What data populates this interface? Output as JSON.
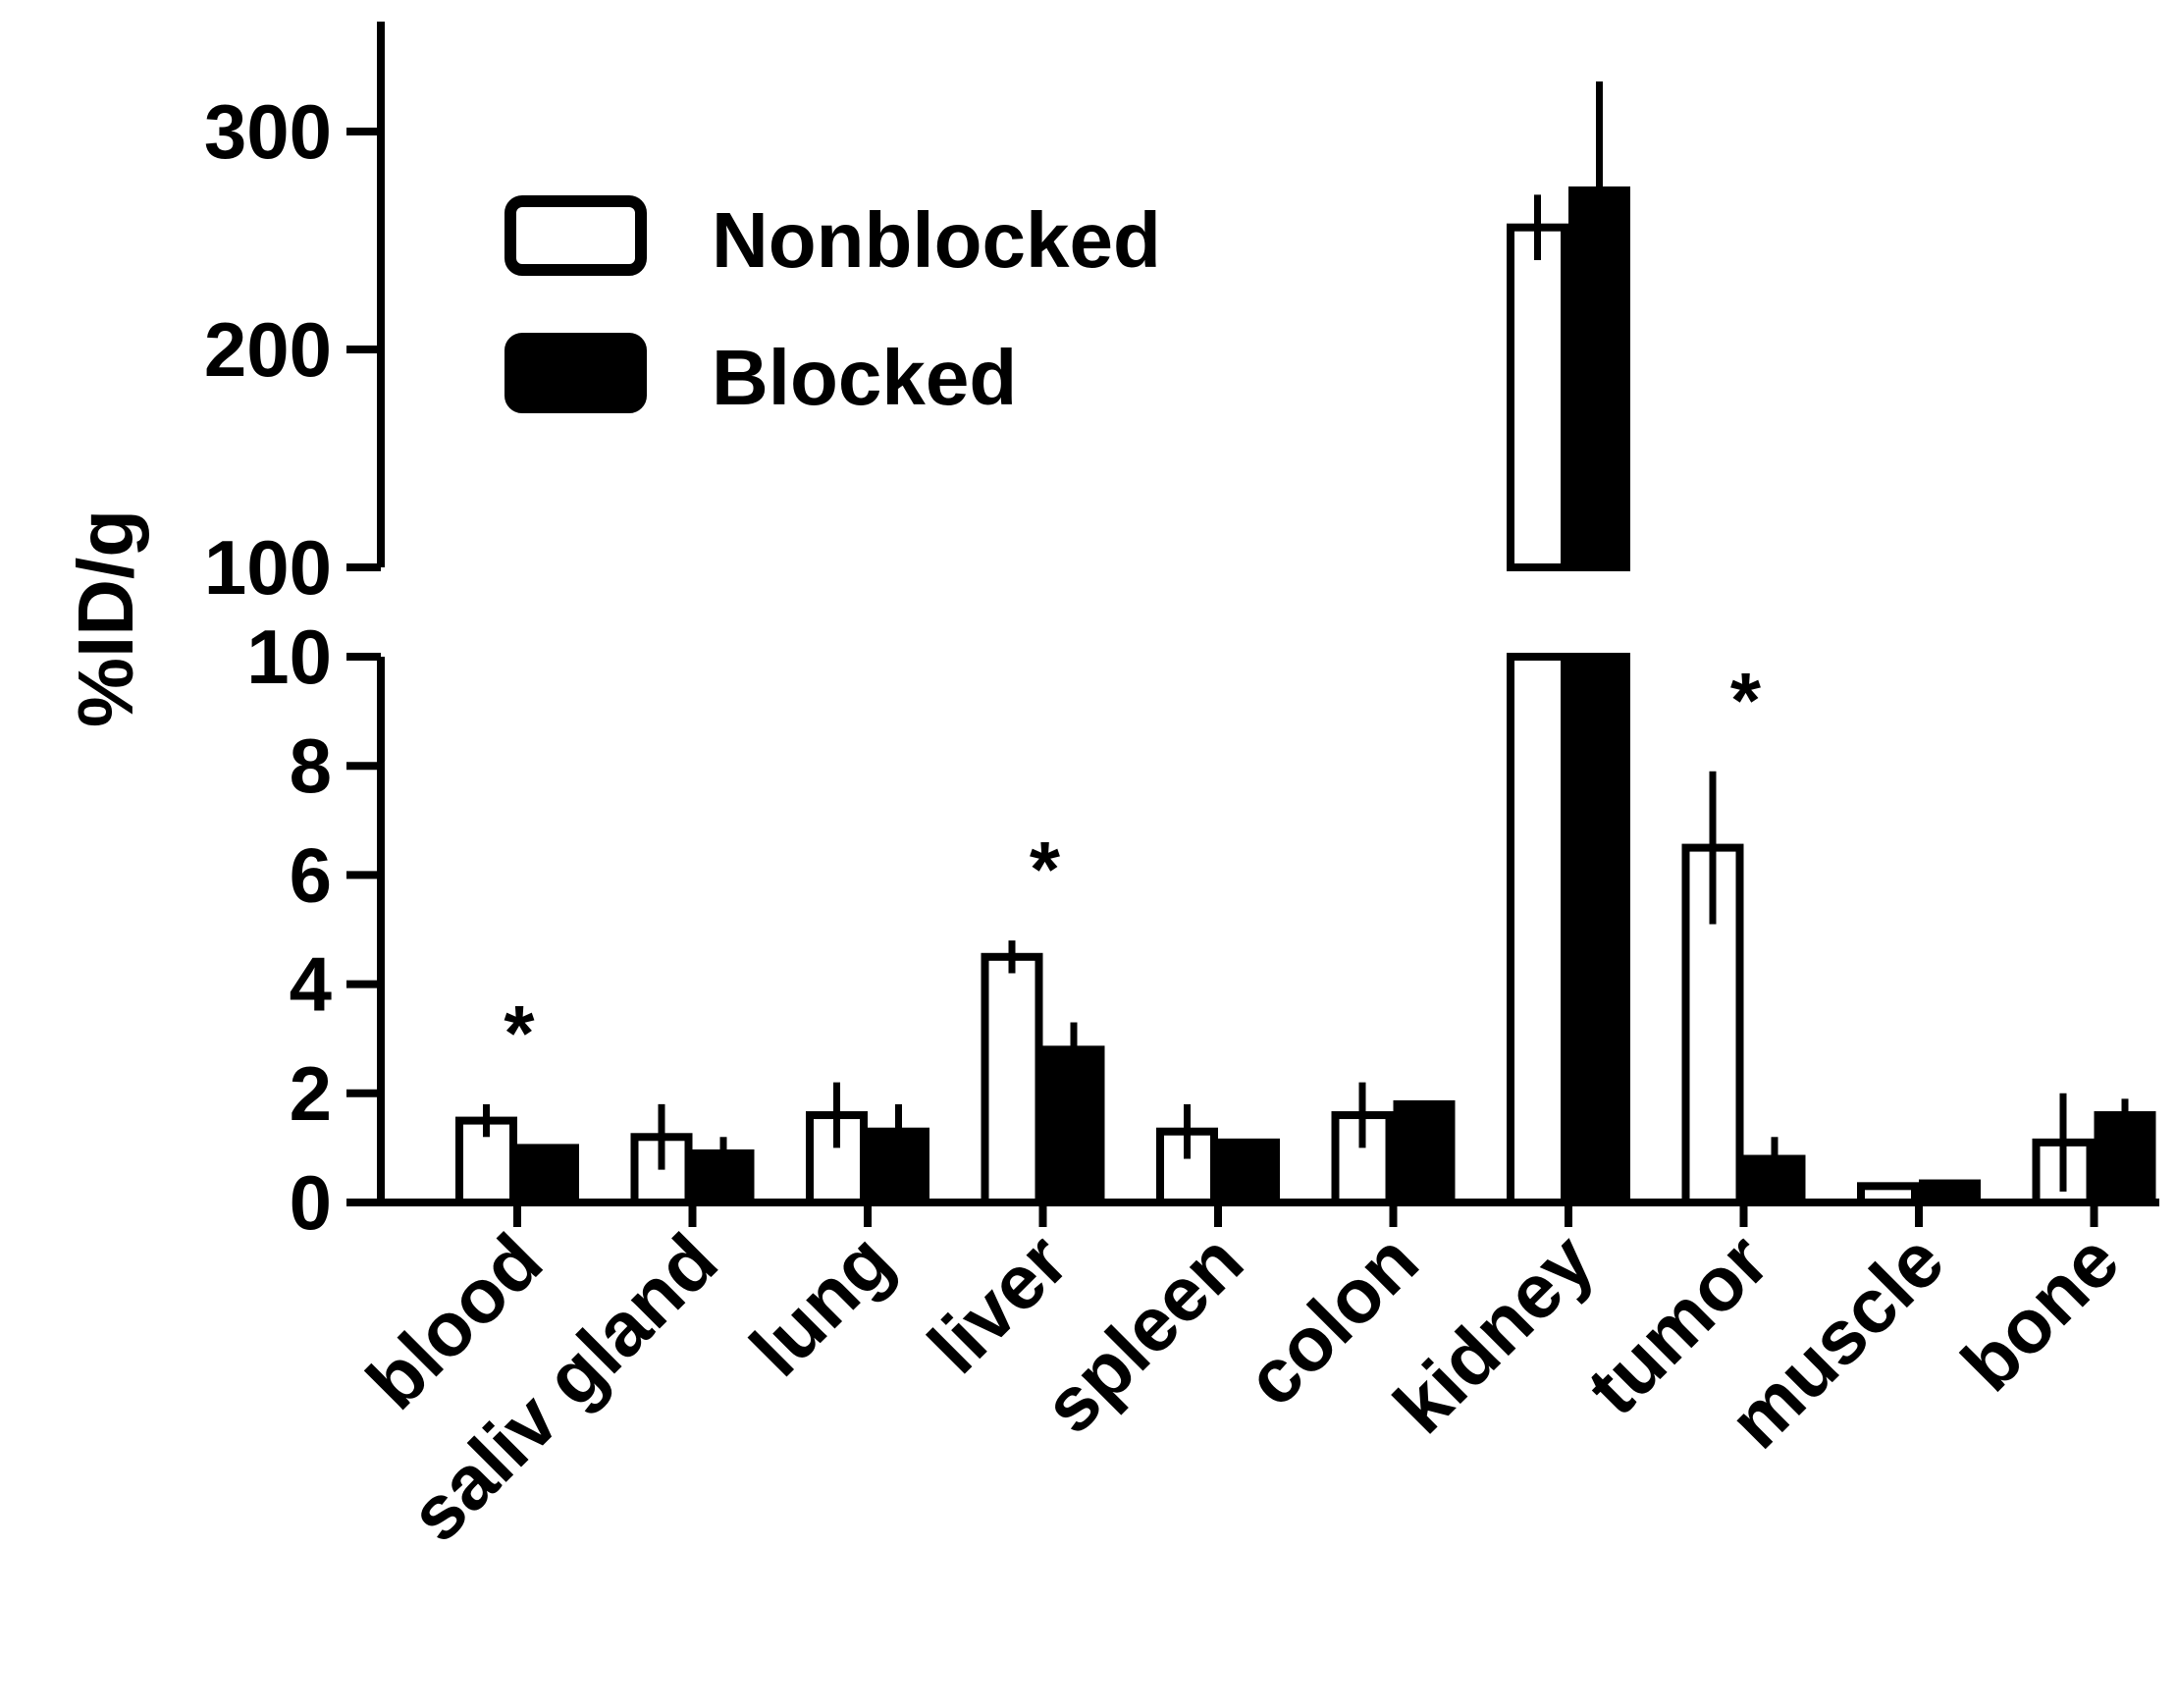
{
  "chart_data": {
    "type": "bar",
    "ylabel": "%ID/g",
    "categories": [
      "blood",
      "saliv gland",
      "lung",
      "liver",
      "spleen",
      "colon",
      "kidney",
      "tumor",
      "muscle",
      "bone"
    ],
    "series": [
      {
        "name": "Nonblocked",
        "fill": "#ffffff",
        "values": [
          1.5,
          1.2,
          1.6,
          4.5,
          1.3,
          1.6,
          256,
          6.5,
          0.3,
          1.1
        ],
        "errors": [
          0.3,
          0.6,
          0.6,
          0.3,
          0.5,
          0.6,
          15,
          1.4,
          0.05,
          0.9
        ]
      },
      {
        "name": "Blocked",
        "fill": "#000000",
        "values": [
          1.0,
          0.9,
          1.3,
          2.8,
          1.1,
          1.8,
          273,
          0.8,
          0.35,
          1.6
        ],
        "errors": [
          0.05,
          0.3,
          0.5,
          0.5,
          0.05,
          0.05,
          50,
          0.4,
          0.05,
          0.3
        ]
      }
    ],
    "axis": {
      "broken": true,
      "lower_range": [
        0,
        10
      ],
      "upper_range": [
        100,
        350
      ],
      "lower_ticks": [
        "0",
        "2",
        "4",
        "6",
        "8",
        "10"
      ],
      "upper_ticks": [
        "100",
        "200",
        "300"
      ]
    },
    "significance": [
      {
        "category": "blood",
        "label": "*"
      },
      {
        "category": "liver",
        "label": "*"
      },
      {
        "category": "tumor",
        "label": "*"
      }
    ],
    "legend": {
      "position": "top-left",
      "entries": [
        {
          "label": "Nonblocked",
          "swatch": "#ffffff"
        },
        {
          "label": "Blocked",
          "swatch": "#000000"
        }
      ]
    },
    "grid": false
  }
}
